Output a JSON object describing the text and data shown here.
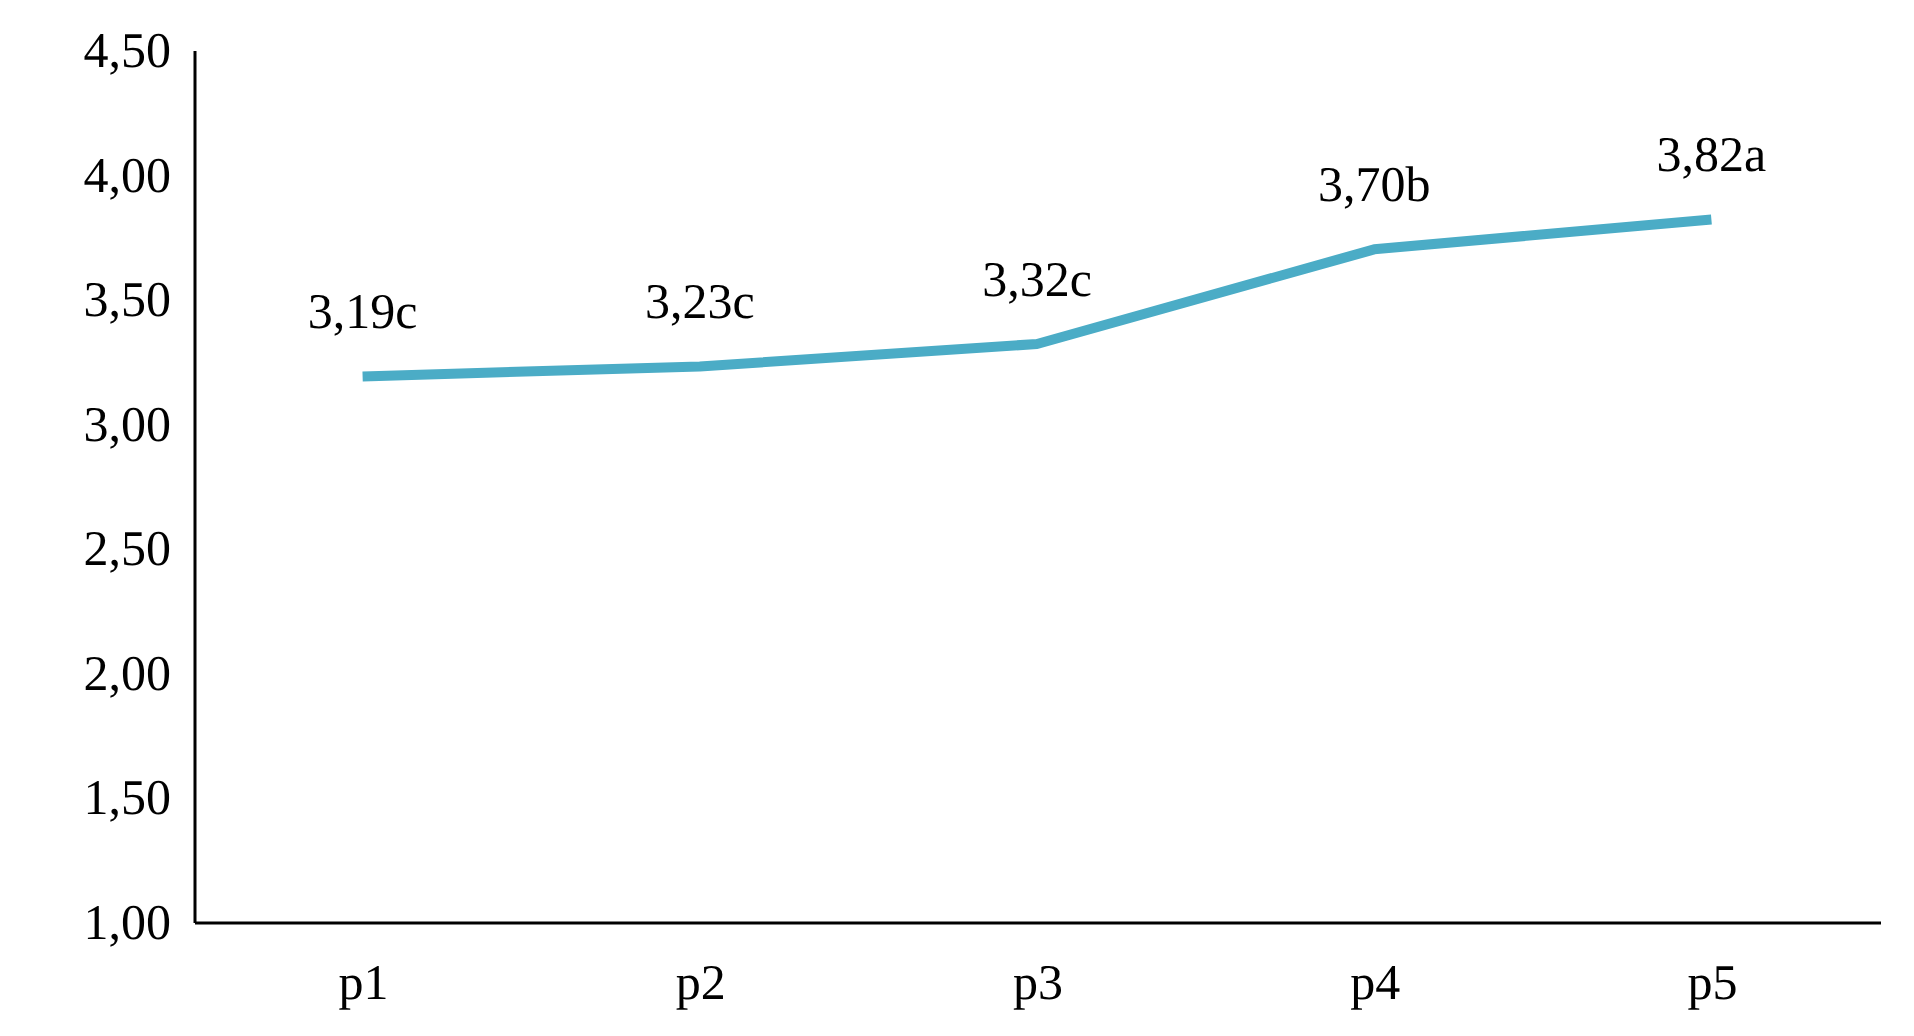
{
  "chart_data": {
    "type": "line",
    "categories": [
      "p1",
      "p2",
      "p3",
      "p4",
      "p5"
    ],
    "series": [
      {
        "color": "#4bacc6",
        "values": [
          3.19,
          3.23,
          3.32,
          3.7,
          3.82
        ],
        "value_labels": [
          "3,19c",
          "3,23c",
          "3,32c",
          "3,70b",
          "3,82a"
        ]
      }
    ],
    "ylim": [
      1,
      4.5
    ],
    "yticks": [
      {
        "value": 1,
        "label": "1,00"
      },
      {
        "value": 1.5,
        "label": "1,50"
      },
      {
        "value": 2,
        "label": "2,00"
      },
      {
        "value": 2.5,
        "label": "2,50"
      },
      {
        "value": 3,
        "label": "3,00"
      },
      {
        "value": 3.5,
        "label": "3,50"
      },
      {
        "value": 4,
        "label": "4,00"
      },
      {
        "value": 4.5,
        "label": "4,50"
      }
    ],
    "grid": false
  }
}
